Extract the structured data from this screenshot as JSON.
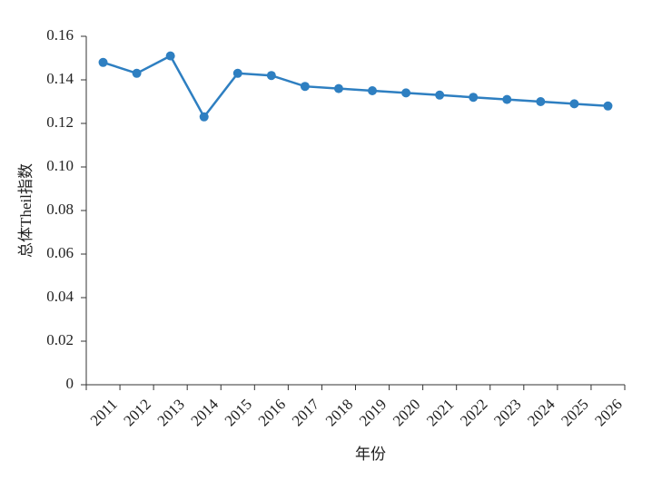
{
  "chart_data": {
    "type": "line",
    "x_label": "年份",
    "y_label": "总体Theil指数",
    "categories": [
      "2011",
      "2012",
      "2013",
      "2014",
      "2015",
      "2016",
      "2017",
      "2018",
      "2019",
      "2020",
      "2021",
      "2022",
      "2023",
      "2024",
      "2025",
      "2026"
    ],
    "series": [
      {
        "name": "总体Theil指数",
        "color": "#2e7fc1",
        "values": [
          0.148,
          0.143,
          0.151,
          0.123,
          0.143,
          0.142,
          0.137,
          0.136,
          0.135,
          0.134,
          0.133,
          0.132,
          0.131,
          0.13,
          0.129,
          0.128
        ]
      }
    ],
    "ylim": [
      0,
      0.16
    ],
    "yticks": [
      0,
      0.02,
      0.04,
      0.06,
      0.08,
      {
        "value": 0.1,
        "label": "0.10"
      },
      0.12,
      0.14,
      0.16
    ],
    "grid": false
  }
}
